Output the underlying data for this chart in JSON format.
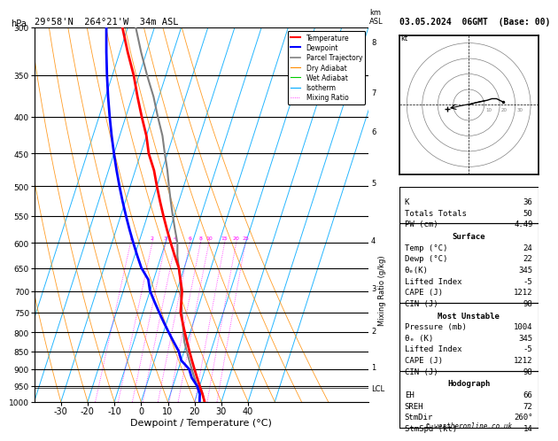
{
  "title_left": "29°58'N  264°21'W  34m ASL",
  "title_right": "03.05.2024  06GMT  (Base: 00)",
  "xlabel": "Dewpoint / Temperature (°C)",
  "pressure_levels": [
    300,
    350,
    400,
    450,
    500,
    550,
    600,
    650,
    700,
    750,
    800,
    850,
    900,
    950,
    1000
  ],
  "km_ticks": [
    1,
    2,
    3,
    4,
    5,
    6,
    7,
    8
  ],
  "km_pressures": [
    895,
    795,
    695,
    595,
    495,
    420,
    370,
    315
  ],
  "lcl_pressure": 957,
  "colors": {
    "temperature": "#ff0000",
    "dewpoint": "#0000ff",
    "parcel": "#808080",
    "dry_adiabat": "#ff8c00",
    "wet_adiabat": "#00cc00",
    "isotherm": "#00aaff",
    "mixing_ratio": "#ff00ff"
  },
  "temp_profile": {
    "pressure": [
      1004,
      975,
      950,
      925,
      900,
      875,
      850,
      825,
      800,
      775,
      750,
      725,
      700,
      675,
      650,
      625,
      600,
      575,
      550,
      525,
      500,
      475,
      450,
      425,
      400,
      375,
      350,
      325,
      300
    ],
    "temp": [
      24,
      22,
      20,
      18,
      16,
      14,
      12,
      10,
      8,
      6,
      4,
      3,
      2,
      0,
      -2,
      -5,
      -8,
      -11,
      -14,
      -17,
      -20,
      -23,
      -27,
      -30,
      -34,
      -38,
      -42,
      -47,
      -52
    ]
  },
  "dewp_profile": {
    "pressure": [
      1004,
      975,
      950,
      925,
      900,
      875,
      850,
      825,
      800,
      775,
      750,
      725,
      700,
      675,
      650,
      625,
      600,
      575,
      550,
      525,
      500,
      475,
      450,
      425,
      400,
      375,
      350,
      325,
      300
    ],
    "dewp": [
      22,
      21,
      19,
      16,
      14,
      10,
      8,
      5,
      2,
      -1,
      -4,
      -7,
      -10,
      -12,
      -16,
      -19,
      -22,
      -25,
      -28,
      -31,
      -34,
      -37,
      -40,
      -43,
      -46,
      -49,
      -52,
      -55,
      -58
    ]
  },
  "parcel_profile": {
    "pressure": [
      1004,
      975,
      950,
      925,
      900,
      875,
      850,
      825,
      800,
      775,
      750,
      725,
      700,
      675,
      650,
      625,
      600,
      575,
      550,
      525,
      500,
      475,
      450,
      425,
      400,
      375,
      350,
      325,
      300
    ],
    "temp": [
      24,
      22,
      19,
      17,
      15,
      13,
      11,
      9,
      7.5,
      6,
      4.5,
      3,
      1.5,
      0,
      -2,
      -4,
      -5.5,
      -8,
      -10.5,
      -13,
      -15.5,
      -18,
      -21,
      -24,
      -28,
      -32,
      -37,
      -42,
      -47
    ]
  },
  "stats": {
    "K": 36,
    "Totals_Totals": 50,
    "PW_cm": 4.49,
    "Surface_Temp": 24,
    "Surface_Dewp": 22,
    "Surface_theta_e": 345,
    "Surface_LI": -5,
    "Surface_CAPE": 1212,
    "Surface_CIN": 98,
    "MU_Pressure": 1004,
    "MU_theta_e": 345,
    "MU_LI": -5,
    "MU_CAPE": 1212,
    "MU_CIN": 98,
    "EH": 66,
    "SREH": 72,
    "StmDir": 260,
    "StmSpd": 14
  }
}
